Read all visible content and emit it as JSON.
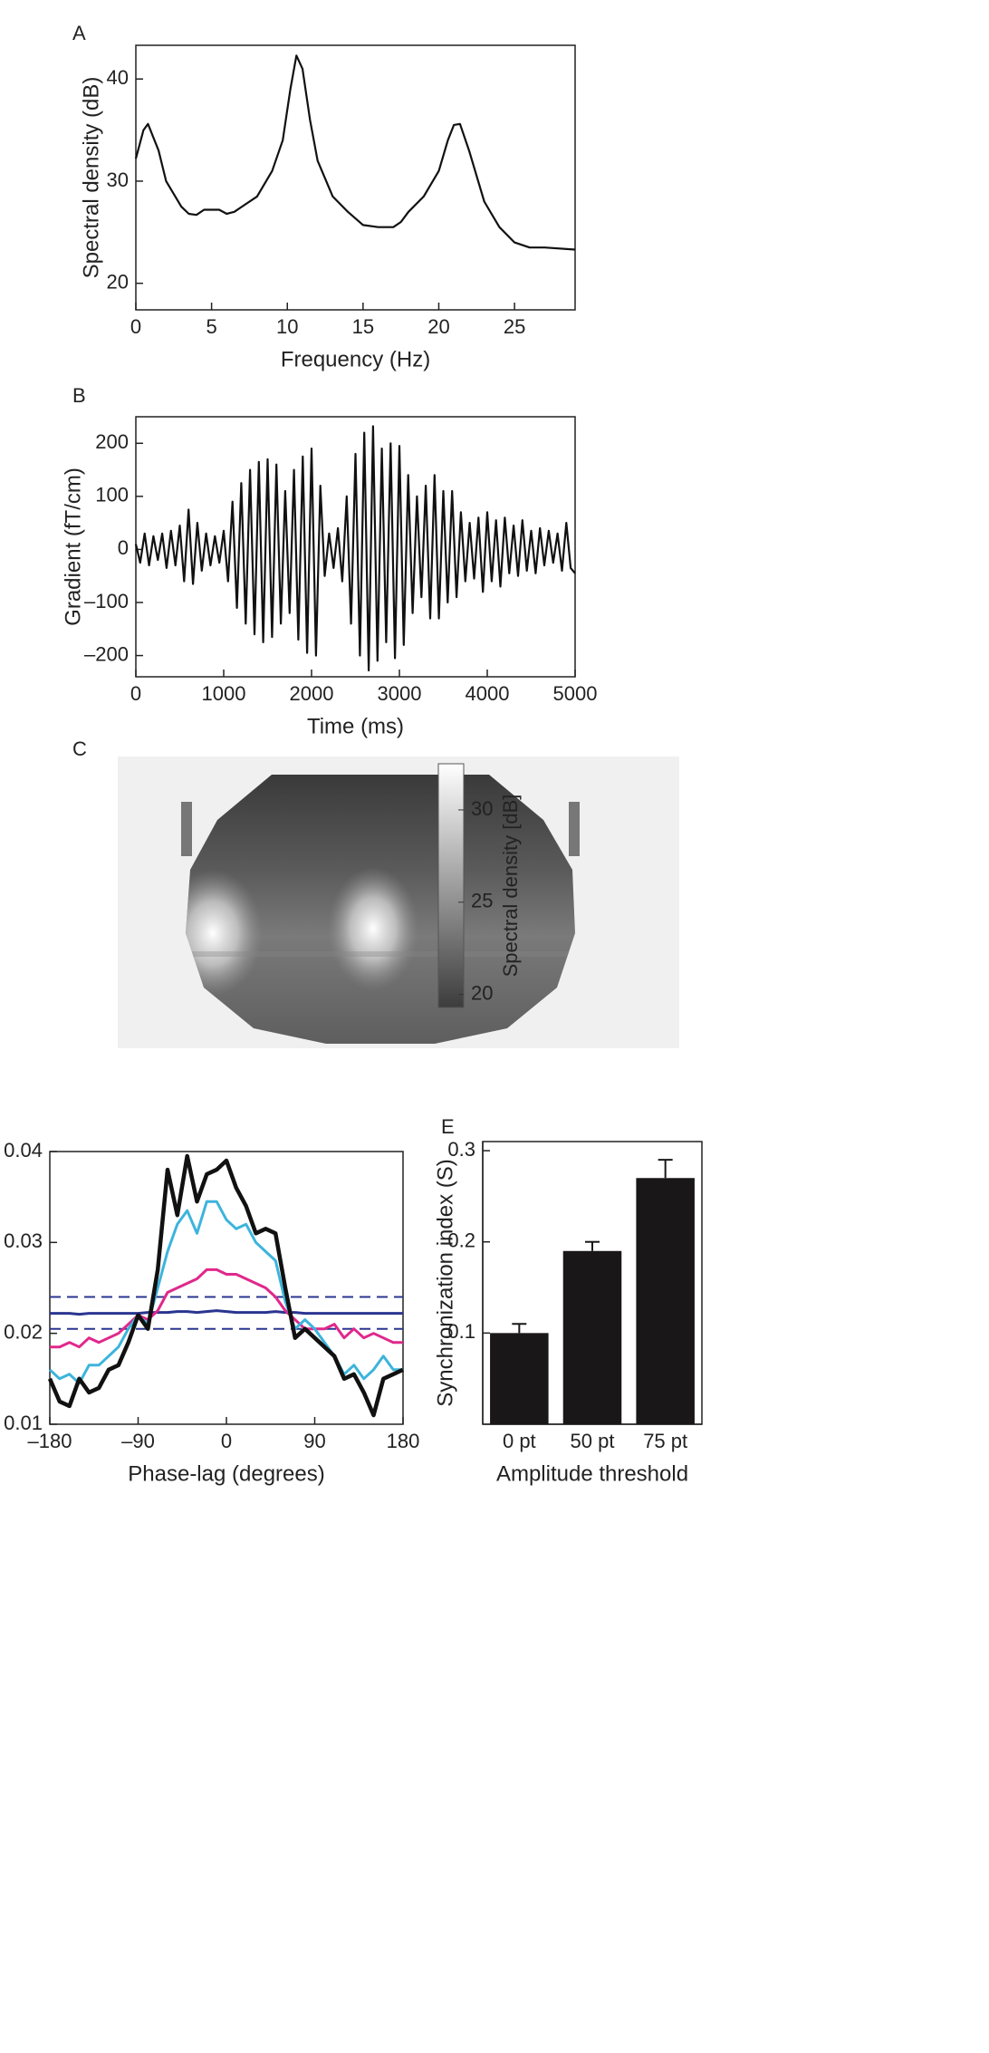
{
  "chart_data": [
    {
      "type": "line",
      "panel_label": "A",
      "xlabel": "Frequency (Hz)",
      "ylabel": "Spectral density (dB)",
      "x": [
        0,
        0.5,
        0.8,
        1.5,
        2,
        3,
        3.5,
        4,
        4.5,
        5.5,
        6,
        6.5,
        7,
        8,
        9,
        9.7,
        10.2,
        10.6,
        11,
        11.5,
        12,
        13,
        14,
        15,
        16,
        17,
        17.5,
        18,
        19,
        20,
        20.6,
        21,
        21.4,
        22,
        23,
        24,
        25,
        26,
        27,
        29
      ],
      "values": [
        32.2,
        35,
        35.6,
        33,
        30,
        27.5,
        26.8,
        26.7,
        27.2,
        27.2,
        26.8,
        27,
        27.5,
        28.5,
        31,
        34,
        39,
        42.3,
        41,
        36,
        32,
        28.5,
        27,
        25.7,
        25.5,
        25.5,
        26,
        27,
        28.5,
        31,
        34,
        35.5,
        35.6,
        33,
        28,
        25.5,
        24,
        23.5,
        23.5,
        23.3
      ],
      "color": "#111111",
      "xlim": [
        0,
        29
      ],
      "ylim": [
        17.4,
        43.3
      ],
      "xticks": [
        0,
        5,
        10,
        15,
        20,
        25
      ],
      "yticks": [
        20,
        30,
        40
      ]
    },
    {
      "type": "line",
      "panel_label": "B",
      "xlabel": "Time (ms)",
      "ylabel": "Gradient (fT/cm)",
      "x": [
        0,
        50,
        100,
        150,
        200,
        250,
        300,
        350,
        400,
        450,
        500,
        550,
        600,
        650,
        700,
        750,
        800,
        850,
        900,
        950,
        1000,
        1050,
        1100,
        1150,
        1200,
        1250,
        1300,
        1350,
        1400,
        1450,
        1500,
        1550,
        1600,
        1650,
        1700,
        1750,
        1800,
        1850,
        1900,
        1950,
        2000,
        2050,
        2100,
        2150,
        2200,
        2250,
        2300,
        2350,
        2400,
        2450,
        2500,
        2550,
        2600,
        2650,
        2700,
        2750,
        2800,
        2850,
        2900,
        2950,
        3000,
        3050,
        3100,
        3150,
        3200,
        3250,
        3300,
        3350,
        3400,
        3450,
        3500,
        3550,
        3600,
        3650,
        3700,
        3750,
        3800,
        3850,
        3900,
        3950,
        4000,
        4050,
        4100,
        4150,
        4200,
        4250,
        4300,
        4350,
        4400,
        4450,
        4500,
        4550,
        4600,
        4650,
        4700,
        4750,
        4800,
        4850,
        4900,
        4950,
        5000
      ],
      "values": [
        10,
        -25,
        30,
        -30,
        25,
        -20,
        30,
        -35,
        35,
        -30,
        45,
        -60,
        75,
        -65,
        50,
        -40,
        30,
        -30,
        25,
        -25,
        35,
        -60,
        90,
        -110,
        125,
        -140,
        150,
        -160,
        165,
        -175,
        170,
        -165,
        160,
        -140,
        110,
        -120,
        150,
        -170,
        175,
        -195,
        190,
        -200,
        120,
        -50,
        30,
        -35,
        40,
        -60,
        100,
        -140,
        180,
        -200,
        220,
        -228,
        232,
        -210,
        190,
        -175,
        200,
        -205,
        195,
        -180,
        140,
        -120,
        100,
        -90,
        120,
        -130,
        140,
        -130,
        110,
        -100,
        110,
        -90,
        70,
        -60,
        50,
        -55,
        60,
        -80,
        70,
        -60,
        55,
        -70,
        60,
        -45,
        45,
        -50,
        55,
        -40,
        35,
        -45,
        40,
        -30,
        35,
        -25,
        30,
        -40,
        50,
        -35,
        -45
      ],
      "color": "#111111",
      "xlim": [
        0,
        5000
      ],
      "ylim": [
        -240,
        250
      ],
      "xticks": [
        0,
        1000,
        2000,
        3000,
        4000,
        5000
      ],
      "yticks": [
        200,
        100,
        0,
        {
          "value": -100,
          "label": "–100"
        },
        {
          "value": -200,
          "label": "–200"
        }
      ]
    },
    {
      "type": "heatmap",
      "panel_label": "C",
      "colorbar": {
        "label": "Spectral density [dB]",
        "lim": [
          19.3,
          32.5
        ],
        "ticks": [
          20,
          25,
          30
        ]
      }
    },
    {
      "type": "line",
      "xlabel": "Phase-lag (degrees)",
      "x": [
        -180,
        -170,
        -160,
        -150,
        -140,
        -130,
        -120,
        -110,
        -100,
        -90,
        -80,
        -70,
        -60,
        -50,
        -40,
        -30,
        -20,
        -10,
        0,
        10,
        20,
        30,
        40,
        50,
        60,
        70,
        80,
        90,
        100,
        110,
        120,
        130,
        140,
        150,
        160,
        170,
        180
      ],
      "series": [
        {
          "color": "#2a3590",
          "dashed": true,
          "width": 2,
          "values": [
            0.024,
            0.024,
            0.024,
            0.024,
            0.024,
            0.024,
            0.024,
            0.024,
            0.024,
            0.024,
            0.024,
            0.024,
            0.024,
            0.024,
            0.024,
            0.024,
            0.024,
            0.024,
            0.024,
            0.024,
            0.024,
            0.024,
            0.024,
            0.024,
            0.024,
            0.024,
            0.024,
            0.024,
            0.024,
            0.024,
            0.024,
            0.024,
            0.024,
            0.024,
            0.024,
            0.024,
            0.024
          ]
        },
        {
          "color": "#2a3590",
          "dashed": true,
          "width": 2,
          "values": [
            0.0205,
            0.0205,
            0.0205,
            0.0205,
            0.0205,
            0.0205,
            0.0205,
            0.0205,
            0.0205,
            0.0205,
            0.0205,
            0.0205,
            0.0205,
            0.0205,
            0.0205,
            0.0205,
            0.0205,
            0.0205,
            0.0205,
            0.0205,
            0.0205,
            0.0205,
            0.0205,
            0.0205,
            0.0205,
            0.0205,
            0.0205,
            0.0205,
            0.0205,
            0.0205,
            0.0205,
            0.0205,
            0.0205,
            0.0205,
            0.0205,
            0.0205,
            0.0205
          ]
        },
        {
          "color": "#2a3590",
          "width": 3,
          "values": [
            0.0222,
            0.0222,
            0.0222,
            0.0221,
            0.0222,
            0.0222,
            0.0222,
            0.0222,
            0.0222,
            0.0222,
            0.0223,
            0.0223,
            0.0223,
            0.0224,
            0.0224,
            0.0223,
            0.0224,
            0.0225,
            0.0224,
            0.0223,
            0.0223,
            0.0223,
            0.0223,
            0.0224,
            0.0223,
            0.0223,
            0.0222,
            0.0222,
            0.0222,
            0.0222,
            0.0222,
            0.0222,
            0.0222,
            0.0222,
            0.0222,
            0.0222,
            0.0222
          ]
        },
        {
          "color": "#e0288c",
          "width": 3,
          "values": [
            0.0185,
            0.0185,
            0.019,
            0.0185,
            0.0195,
            0.019,
            0.0195,
            0.02,
            0.021,
            0.022,
            0.0215,
            0.0225,
            0.0245,
            0.025,
            0.0255,
            0.026,
            0.027,
            0.027,
            0.0265,
            0.0265,
            0.026,
            0.0255,
            0.025,
            0.024,
            0.0225,
            0.0215,
            0.0205,
            0.0205,
            0.0205,
            0.021,
            0.0195,
            0.0205,
            0.0195,
            0.02,
            0.0195,
            0.019,
            0.019
          ]
        },
        {
          "color": "#3cb4dc",
          "width": 3,
          "values": [
            0.016,
            0.015,
            0.0155,
            0.0145,
            0.0165,
            0.0165,
            0.0175,
            0.0185,
            0.0205,
            0.022,
            0.021,
            0.025,
            0.029,
            0.032,
            0.0335,
            0.031,
            0.0345,
            0.0345,
            0.0325,
            0.0315,
            0.032,
            0.03,
            0.029,
            0.028,
            0.0235,
            0.0205,
            0.0215,
            0.0205,
            0.019,
            0.0175,
            0.0155,
            0.0165,
            0.015,
            0.016,
            0.0175,
            0.016,
            0.016
          ]
        },
        {
          "color": "#111111",
          "width": 4.5,
          "values": [
            0.015,
            0.0125,
            0.012,
            0.015,
            0.0135,
            0.014,
            0.016,
            0.0165,
            0.019,
            0.022,
            0.0205,
            0.027,
            0.038,
            0.033,
            0.0395,
            0.0345,
            0.0375,
            0.038,
            0.039,
            0.036,
            0.034,
            0.031,
            0.0315,
            0.031,
            0.025,
            0.0195,
            0.0205,
            0.0195,
            0.0185,
            0.0175,
            0.015,
            0.0155,
            0.0135,
            0.011,
            0.015,
            0.0155,
            0.016
          ]
        }
      ],
      "xlim": [
        -180,
        180
      ],
      "ylim": [
        0.01,
        0.04
      ],
      "xticks": [
        {
          "value": -180,
          "label": "–180"
        },
        {
          "value": -90,
          "label": "–90"
        },
        0,
        90,
        180
      ],
      "yticks": [
        0.01,
        0.02,
        0.03,
        0.04
      ]
    },
    {
      "type": "bar",
      "panel_label": "E",
      "xlabel": "Amplitude threshold",
      "ylabel": "Synchronization index (S)",
      "categories": [
        "0 pt",
        "50 pt",
        "75 pt"
      ],
      "values": [
        0.1,
        0.19,
        0.27
      ],
      "errors": [
        0.01,
        0.01,
        0.02
      ],
      "color": "#1a1718",
      "ylim": [
        0,
        0.31
      ],
      "yticks": [
        0.1,
        0.2,
        0.3
      ]
    }
  ]
}
